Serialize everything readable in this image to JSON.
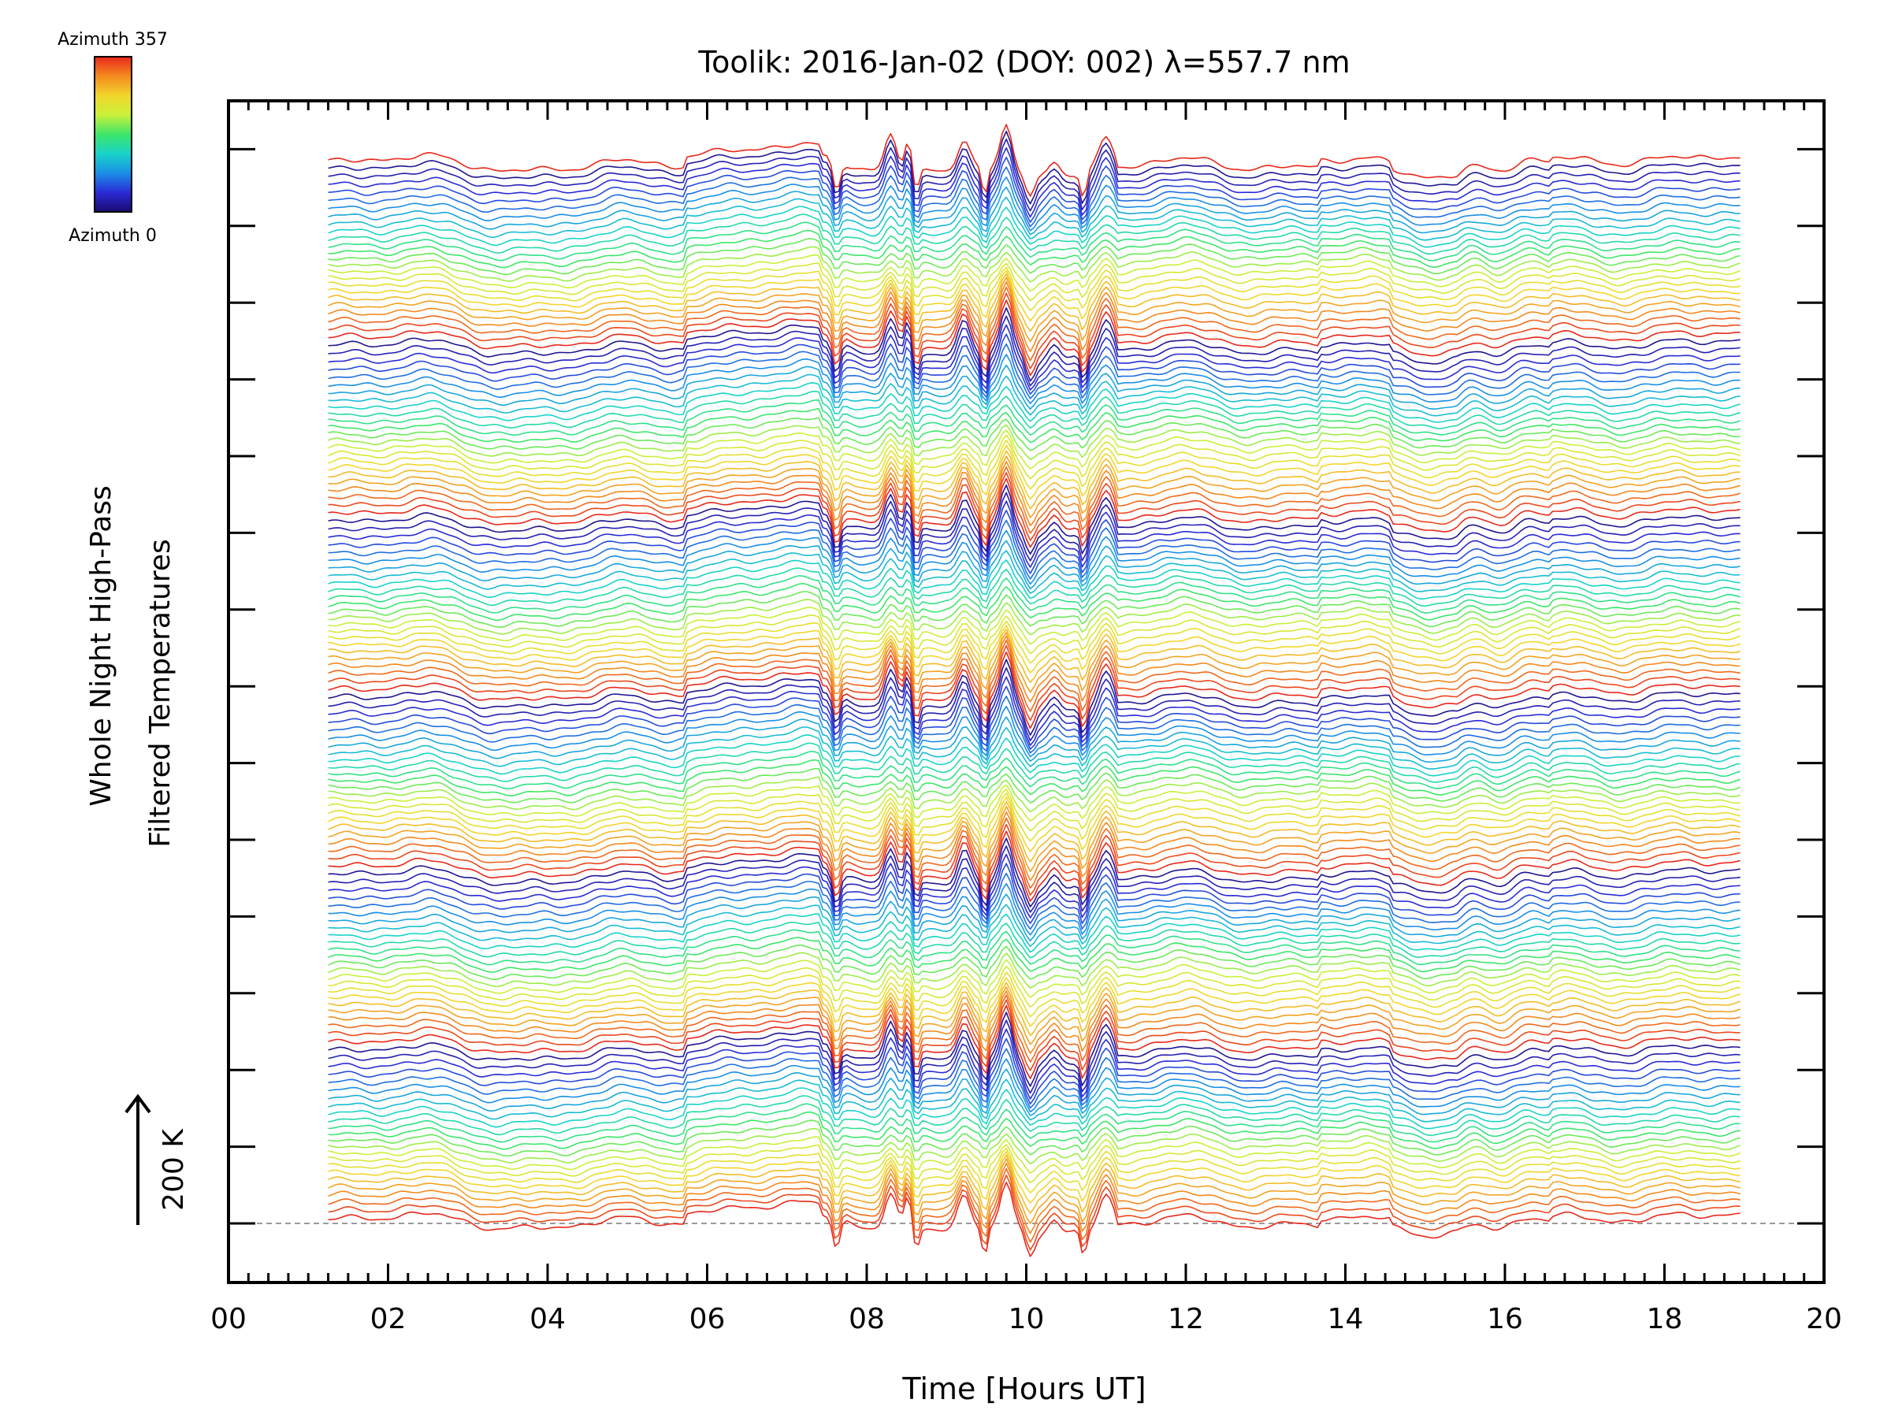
{
  "chart_data": {
    "type": "line",
    "title": "Toolik: 2016-Jan-02 (DOY: 002) λ=557.7 nm",
    "xlabel": "Time [Hours UT]",
    "ylabel_line1": "Whole Night High-Pass",
    "ylabel_line2": "Filtered Temperatures",
    "scale_label": "200 K",
    "xlim": [
      0,
      20
    ],
    "x_ticks": [
      "00",
      "02",
      "04",
      "06",
      "08",
      "10",
      "12",
      "14",
      "16",
      "18",
      "20"
    ],
    "x_tick_values": [
      0,
      2,
      4,
      6,
      8,
      10,
      12,
      14,
      16,
      18,
      20
    ],
    "data_start_hour": 1.25,
    "data_end_hour": 18.95,
    "series_count": 145,
    "azimuth_cycle_length": 24,
    "azimuth_range": [
      0,
      357
    ],
    "colorbar": {
      "top_label": "Azimuth  357",
      "bottom_label": "Azimuth  0",
      "colormap": "rainbow",
      "stops": [
        "#1a0a6e",
        "#2b2bd6",
        "#1a8fe6",
        "#19d3c8",
        "#3ee66a",
        "#c9f03a",
        "#f2d62b",
        "#f48a1f",
        "#e8281c"
      ]
    },
    "features": {
      "strong_wave_hours": [
        7.6,
        8.3,
        8.55,
        9.25,
        9.5,
        9.75,
        10.05,
        10.45,
        10.75,
        11.0
      ],
      "note": "stacked high-pass filtered temperature traces, one per azimuth look direction, offset vertically"
    }
  }
}
